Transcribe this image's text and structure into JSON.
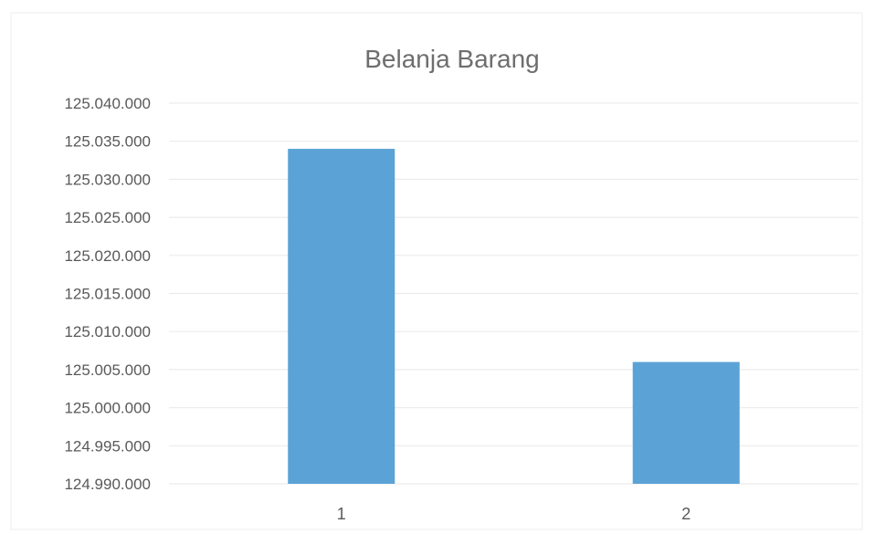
{
  "chart_data": {
    "type": "bar",
    "title": "Belanja Barang",
    "categories": [
      "1",
      "2"
    ],
    "values": [
      125034000,
      125006000
    ],
    "ylim": [
      124990000,
      125040000
    ],
    "y_ticks": [
      124990000,
      124995000,
      125000000,
      125005000,
      125010000,
      125015000,
      125020000,
      125025000,
      125030000,
      125035000,
      125040000
    ],
    "y_tick_labels": [
      "124.990.000",
      "124.995.000",
      "125.000.000",
      "125.005.000",
      "125.010.000",
      "125.015.000",
      "125.020.000",
      "125.025.000",
      "125.030.000",
      "125.035.000",
      "125.040.000"
    ],
    "grid": true,
    "legend": "none",
    "bar_color": "#5ba3d6"
  }
}
